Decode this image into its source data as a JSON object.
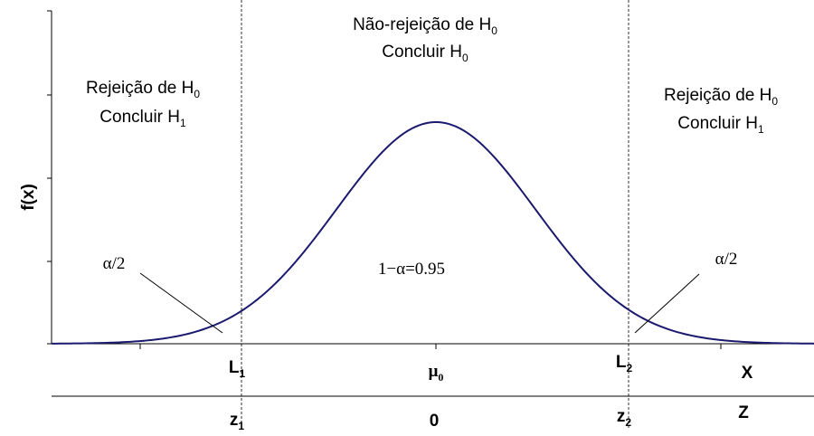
{
  "top_label": {
    "line1": {
      "text": "Não-rejeição de H",
      "sub": "0"
    },
    "line2": {
      "text": "Concluir H",
      "sub": "0"
    }
  },
  "left_label": {
    "line1": {
      "text": "Rejeição de H",
      "sub": "0"
    },
    "line2": {
      "text": "Concluir H",
      "sub": "1"
    }
  },
  "right_label": {
    "line1": {
      "text": "Rejeição de H",
      "sub": "0"
    },
    "line2": {
      "text": "Concluir H",
      "sub": "1"
    }
  },
  "y_axis_label": "f(x)",
  "left_tail": "α/2",
  "right_tail": "α/2",
  "center_area": "1−α=0.95",
  "x_axis": {
    "left": {
      "text": "L",
      "sub": "1"
    },
    "center": {
      "text": "μ",
      "sub": "0"
    },
    "right": {
      "text": "L",
      "sub": "2"
    },
    "name": "X"
  },
  "z_axis": {
    "left": {
      "text": "z",
      "sub": "1"
    },
    "center": "0",
    "right": {
      "text": "z",
      "sub": "2"
    },
    "name": "Z"
  }
}
